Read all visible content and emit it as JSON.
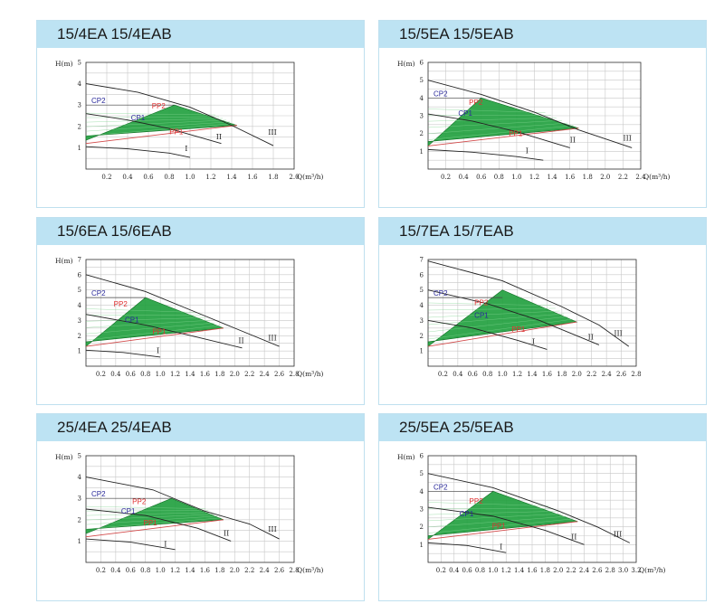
{
  "colors": {
    "header_bg": "#bde3f3",
    "fill_green": "#1e9e3c",
    "cp_label": "#2a2a9a",
    "pp_label": "#e03030",
    "curve": "#222222",
    "grid": "#c8c8c8"
  },
  "chart_data": [
    {
      "type": "line",
      "title": "15/4EA  15/4EAB",
      "ylabel": "H(m)",
      "xlabel": "Q(m³/h)",
      "xlim": [
        0,
        2.0
      ],
      "ylim": [
        0,
        5
      ],
      "xticks": [
        "0.2",
        "0.4",
        "0.6",
        "0.8",
        "1.0",
        "1.2",
        "1.4",
        "1.6",
        "1.8",
        "2.0"
      ],
      "yticks": [
        "1",
        "2",
        "3",
        "4",
        "5"
      ],
      "curves": [
        {
          "label": "I",
          "points": [
            [
              0,
              1.05
            ],
            [
              0.4,
              0.95
            ],
            [
              0.8,
              0.75
            ],
            [
              1.0,
              0.55
            ]
          ],
          "lx": 0.95,
          "ly": 0.85
        },
        {
          "label": "II",
          "points": [
            [
              0,
              2.6
            ],
            [
              0.4,
              2.3
            ],
            [
              0.8,
              1.9
            ],
            [
              1.3,
              1.2
            ]
          ],
          "lx": 1.25,
          "ly": 1.4
        },
        {
          "label": "III",
          "points": [
            [
              0,
              4.0
            ],
            [
              0.5,
              3.6
            ],
            [
              1.0,
              2.9
            ],
            [
              1.4,
              2.05
            ],
            [
              1.8,
              1.1
            ]
          ],
          "lx": 1.75,
          "ly": 1.6
        }
      ],
      "region": [
        [
          0,
          1.35
        ],
        [
          0.85,
          3.0
        ],
        [
          1.45,
          2.05
        ],
        [
          0,
          1.55
        ]
      ],
      "region_lower": [
        [
          0,
          1.2
        ],
        [
          1.45,
          2.05
        ]
      ],
      "labels": {
        "cp2": "CP2",
        "pp2": "PP2",
        "cp1": "CP1",
        "pp1": "PP1"
      },
      "cp2_y": 3.0,
      "cp2_x": 0.0,
      "cp1_x": 0.38,
      "cp1_y": 2.2,
      "pp2_x": 0.58,
      "pp2_y": 2.75,
      "pp1_x": 0.75,
      "pp1_y": 1.55
    },
    {
      "type": "line",
      "title": "15/5EA  15/5EAB",
      "ylabel": "H(m)",
      "xlabel": "Q(m³/h)",
      "xlim": [
        0,
        2.4
      ],
      "ylim": [
        0,
        6
      ],
      "xticks": [
        "0.2",
        "0.4",
        "0.6",
        "0.8",
        "1.0",
        "1.2",
        "1.4",
        "1.6",
        "1.8",
        "2.0",
        "2.2",
        "2.4"
      ],
      "yticks": [
        "1",
        "2",
        "3",
        "4",
        "5",
        "6"
      ],
      "curves": [
        {
          "label": "I",
          "points": [
            [
              0,
              1.1
            ],
            [
              0.5,
              0.95
            ],
            [
              1.0,
              0.7
            ],
            [
              1.3,
              0.5
            ]
          ],
          "lx": 1.1,
          "ly": 0.9
        },
        {
          "label": "II",
          "points": [
            [
              0,
              3.1
            ],
            [
              0.5,
              2.7
            ],
            [
              1.0,
              2.1
            ],
            [
              1.6,
              1.2
            ]
          ],
          "lx": 1.6,
          "ly": 1.5
        },
        {
          "label": "III",
          "points": [
            [
              0,
              5.0
            ],
            [
              0.6,
              4.2
            ],
            [
              1.2,
              3.2
            ],
            [
              1.7,
              2.2
            ],
            [
              2.3,
              1.2
            ]
          ],
          "lx": 2.2,
          "ly": 1.6
        }
      ],
      "region": [
        [
          0,
          1.3
        ],
        [
          0.6,
          4.0
        ],
        [
          1.7,
          2.3
        ],
        [
          0,
          1.55
        ]
      ],
      "region_lower": [
        [
          0,
          1.3
        ],
        [
          1.7,
          2.3
        ]
      ],
      "labels": {
        "cp2": "CP2",
        "pp2": "PP2",
        "cp1": "CP1",
        "pp1": "PP1"
      },
      "cp2_y": 4.0,
      "cp2_x": 0.0,
      "cp1_x": 0.28,
      "cp1_y": 2.9,
      "pp2_x": 0.4,
      "pp2_y": 3.5,
      "pp1_x": 0.85,
      "pp1_y": 1.75
    },
    {
      "type": "line",
      "title": "15/6EA  15/6EAB",
      "ylabel": "H(m)",
      "xlabel": "Q(m³/h)",
      "xlim": [
        0,
        2.8
      ],
      "ylim": [
        0,
        7
      ],
      "xticks": [
        "0.2",
        "0.4",
        "0.6",
        "0.8",
        "1.0",
        "1.2",
        "1.4",
        "1.6",
        "1.8",
        "2.0",
        "2.2",
        "2.4",
        "2.6",
        "2.8"
      ],
      "yticks": [
        "1",
        "2",
        "3",
        "4",
        "5",
        "6",
        "7"
      ],
      "curves": [
        {
          "label": "I",
          "points": [
            [
              0,
              1.05
            ],
            [
              0.5,
              0.9
            ],
            [
              1.0,
              0.6
            ]
          ],
          "lx": 0.95,
          "ly": 0.85
        },
        {
          "label": "II",
          "points": [
            [
              0,
              3.4
            ],
            [
              0.8,
              2.7
            ],
            [
              1.5,
              1.9
            ],
            [
              2.1,
              1.2
            ]
          ],
          "lx": 2.05,
          "ly": 1.5
        },
        {
          "label": "III",
          "points": [
            [
              0,
              6.0
            ],
            [
              0.8,
              4.9
            ],
            [
              1.5,
              3.5
            ],
            [
              2.0,
              2.5
            ],
            [
              2.6,
              1.3
            ]
          ],
          "lx": 2.45,
          "ly": 1.7
        }
      ],
      "region": [
        [
          0,
          1.3
        ],
        [
          0.8,
          4.5
        ],
        [
          1.85,
          2.5
        ],
        [
          0,
          1.6
        ]
      ],
      "region_lower": [
        [
          0,
          1.3
        ],
        [
          1.85,
          2.5
        ]
      ],
      "labels": {
        "cp2": "CP2",
        "pp2": "PP2",
        "cp1": "CP1",
        "pp1": "PP1"
      },
      "cp2_y": 4.5,
      "cp2_x": 0.0,
      "cp1_x": 0.45,
      "cp1_y": 2.75,
      "pp2_x": 0.3,
      "pp2_y": 3.8,
      "pp1_x": 0.82,
      "pp1_y": 2.0
    },
    {
      "type": "line",
      "title": "15/7EA  15/7EAB",
      "ylabel": "",
      "xlabel": "",
      "xlim": [
        0,
        2.8
      ],
      "ylim": [
        0,
        7
      ],
      "xticks": [
        "0.2",
        "0.4",
        "0.6",
        "0.8",
        "1.0",
        "1.2",
        "1.4",
        "1.6",
        "1.8",
        "2.0",
        "2.2",
        "2.4",
        "2.6",
        "2.8"
      ],
      "yticks": [
        "1",
        "2",
        "3",
        "4",
        "5",
        "6",
        "7"
      ],
      "curves": [
        {
          "label": "I",
          "points": [
            [
              0,
              3.0
            ],
            [
              0.6,
              2.5
            ],
            [
              1.2,
              1.7
            ],
            [
              1.6,
              1.1
            ]
          ],
          "lx": 1.4,
          "ly": 1.45
        },
        {
          "label": "II",
          "points": [
            [
              0,
              5.0
            ],
            [
              0.8,
              4.1
            ],
            [
              1.5,
              3.0
            ],
            [
              2.3,
              1.4
            ]
          ],
          "lx": 2.15,
          "ly": 1.75
        },
        {
          "label": "III",
          "points": [
            [
              0,
              6.9
            ],
            [
              1.0,
              5.6
            ],
            [
              1.8,
              3.9
            ],
            [
              2.3,
              2.7
            ],
            [
              2.7,
              1.3
            ]
          ],
          "lx": 2.5,
          "ly": 2.0
        }
      ],
      "region": [
        [
          0,
          1.3
        ],
        [
          1.0,
          5.0
        ],
        [
          2.0,
          2.9
        ],
        [
          0,
          1.6
        ]
      ],
      "region_lower": [
        [
          0,
          1.3
        ],
        [
          2.0,
          2.9
        ]
      ],
      "labels": {
        "cp2": "CP2",
        "pp2": "PP2",
        "cp1": "CP1",
        "pp1": "PP1"
      },
      "cp2_y": 4.5,
      "cp2_x": 0.0,
      "cp1_x": 0.55,
      "cp1_y": 3.05,
      "pp2_x": 0.55,
      "pp2_y": 3.9,
      "pp1_x": 1.05,
      "pp1_y": 2.15
    },
    {
      "type": "line",
      "title": "25/4EA  25/4EAB",
      "ylabel": "H(m)",
      "xlabel": "Q(m³/h)",
      "xlim": [
        0,
        2.8
      ],
      "ylim": [
        0,
        5
      ],
      "xticks": [
        "0.2",
        "0.4",
        "0.6",
        "0.8",
        "1.0",
        "1.2",
        "1.4",
        "1.6",
        "1.8",
        "2.0",
        "2.2",
        "2.4",
        "2.6",
        "2.8"
      ],
      "yticks": [
        "1",
        "2",
        "3",
        "4",
        "5"
      ],
      "curves": [
        {
          "label": "I",
          "points": [
            [
              0,
              1.1
            ],
            [
              0.6,
              0.95
            ],
            [
              1.2,
              0.6
            ]
          ],
          "lx": 1.05,
          "ly": 0.75
        },
        {
          "label": "II",
          "points": [
            [
              0,
              2.5
            ],
            [
              0.8,
              2.2
            ],
            [
              1.5,
              1.6
            ],
            [
              1.95,
              1.0
            ]
          ],
          "lx": 1.85,
          "ly": 1.25
        },
        {
          "label": "III",
          "points": [
            [
              0,
              4.0
            ],
            [
              0.9,
              3.4
            ],
            [
              1.6,
              2.4
            ],
            [
              2.2,
              1.8
            ],
            [
              2.6,
              1.1
            ]
          ],
          "lx": 2.45,
          "ly": 1.45
        }
      ],
      "region": [
        [
          0,
          1.35
        ],
        [
          1.15,
          3.0
        ],
        [
          1.85,
          2.0
        ],
        [
          0,
          1.55
        ]
      ],
      "region_lower": [
        [
          0,
          1.2
        ],
        [
          1.85,
          2.0
        ]
      ],
      "labels": {
        "cp2": "CP2",
        "pp2": "PP2",
        "cp1": "CP1",
        "pp1": "PP1"
      },
      "cp2_y": 3.0,
      "cp2_x": 0.0,
      "cp1_x": 0.4,
      "cp1_y": 2.2,
      "pp2_x": 0.55,
      "pp2_y": 2.65,
      "pp1_x": 0.7,
      "pp1_y": 1.65
    },
    {
      "type": "line",
      "title": "25/5EA  25/5EAB",
      "ylabel": "H(m)",
      "xlabel": "Q(m³/h)",
      "xlim": [
        0,
        3.2
      ],
      "ylim": [
        0,
        6
      ],
      "xticks": [
        "0.2",
        "0.4",
        "0.6",
        "0.8",
        "1.0",
        "1.2",
        "1.4",
        "1.6",
        "1.8",
        "2.0",
        "2.2",
        "2.4",
        "2.6",
        "2.8",
        "3.0",
        "3.2"
      ],
      "yticks": [
        "1",
        "2",
        "3",
        "4",
        "5",
        "6"
      ],
      "curves": [
        {
          "label": "I",
          "points": [
            [
              0,
              1.1
            ],
            [
              0.6,
              0.95
            ],
            [
              1.2,
              0.55
            ]
          ],
          "lx": 1.1,
          "ly": 0.75
        },
        {
          "label": "II",
          "points": [
            [
              0,
              3.1
            ],
            [
              1.0,
              2.6
            ],
            [
              1.8,
              1.8
            ],
            [
              2.4,
              1.0
            ]
          ],
          "lx": 2.2,
          "ly": 1.3
        },
        {
          "label": "III",
          "points": [
            [
              0,
              5.0
            ],
            [
              1.0,
              4.2
            ],
            [
              2.0,
              2.9
            ],
            [
              2.6,
              2.0
            ],
            [
              3.1,
              1.1
            ]
          ],
          "lx": 2.85,
          "ly": 1.45
        }
      ],
      "region": [
        [
          0,
          1.3
        ],
        [
          1.0,
          4.0
        ],
        [
          2.3,
          2.3
        ],
        [
          0,
          1.5
        ]
      ],
      "region_lower": [
        [
          0,
          1.3
        ],
        [
          2.3,
          2.3
        ]
      ],
      "labels": {
        "cp2": "CP2",
        "pp2": "PP2",
        "cp1": "CP1",
        "pp1": "PP1"
      },
      "cp2_y": 4.0,
      "cp2_x": 0.0,
      "cp1_x": 0.4,
      "cp1_y": 2.5,
      "pp2_x": 0.55,
      "pp2_y": 3.2,
      "pp1_x": 0.9,
      "pp1_y": 1.8
    }
  ]
}
